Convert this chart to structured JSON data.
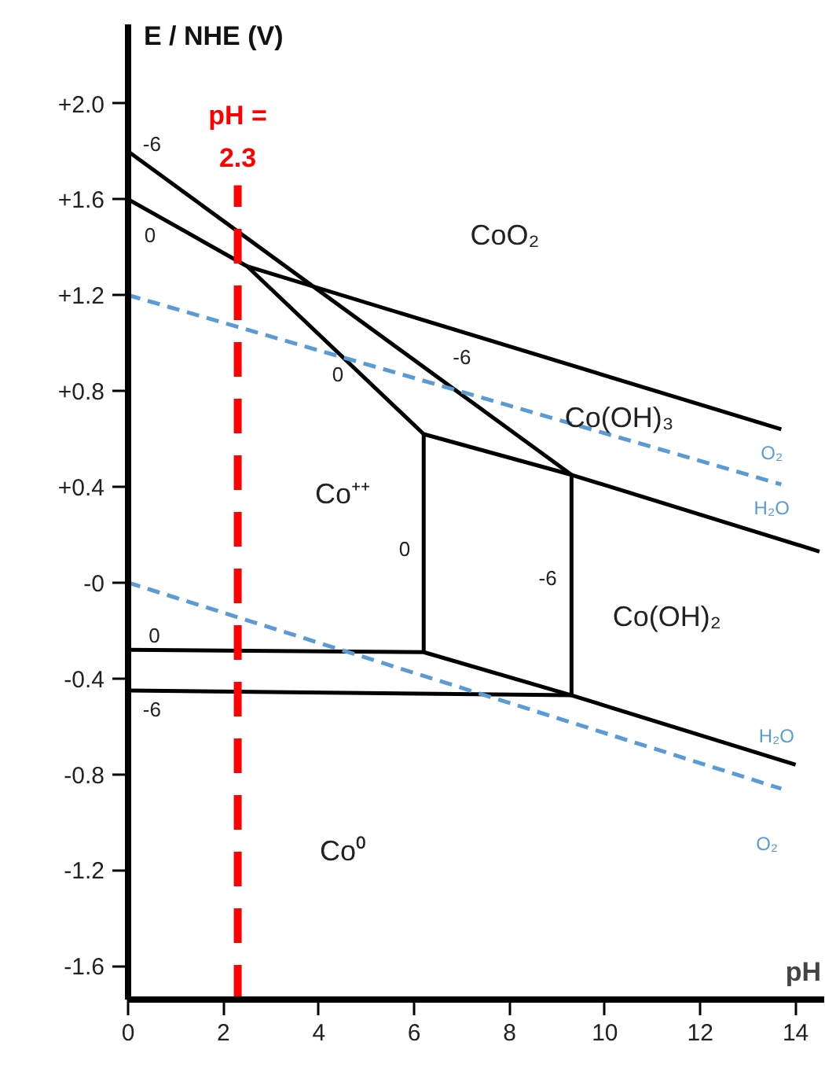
{
  "chart_data": {
    "type": "line",
    "xlabel": "pH",
    "ylabel": "E / NHE (V)",
    "series": [
      {
        "color": "#000000",
        "x": [
          0,
          9.3
        ],
        "values": [
          1.8,
          0.45
        ]
      },
      {
        "color": "#000000",
        "x": [
          0,
          2.5,
          6.2,
          9.3,
          14.5
        ],
        "values": [
          1.6,
          1.32,
          0.62,
          0.45,
          0.13
        ]
      },
      {
        "color": "#000000",
        "x": [
          2.5,
          13.7
        ],
        "values": [
          1.32,
          0.64
        ]
      },
      {
        "color": "#000000",
        "x": [
          6.2,
          6.2
        ],
        "values": [
          0.62,
          -0.29
        ]
      },
      {
        "color": "#000000",
        "x": [
          9.3,
          9.3
        ],
        "values": [
          0.45,
          -0.47
        ]
      },
      {
        "color": "#000000",
        "x": [
          0,
          6.2,
          9.3,
          14
        ],
        "values": [
          -0.28,
          -0.29,
          -0.47,
          -0.76
        ]
      },
      {
        "color": "#000000",
        "x": [
          0,
          9.3
        ],
        "values": [
          -0.45,
          -0.47
        ]
      },
      {
        "color": "#5b9bd5",
        "line_style": "dashed",
        "x": [
          0,
          13.7
        ],
        "values": [
          1.2,
          0.41
        ]
      },
      {
        "color": "#5b9bd5",
        "line_style": "dashed",
        "x": [
          0,
          13.7
        ],
        "values": [
          0,
          -0.86
        ]
      }
    ],
    "xlim": [
      0,
      14.6
    ],
    "ylim": [
      -1.74,
      2.33
    ],
    "xticks": [
      0,
      2,
      4,
      6,
      8,
      10,
      12,
      14
    ],
    "yticks": [
      {
        "value": 2.0,
        "label": "+2.0"
      },
      {
        "value": 1.6,
        "label": "+1.6"
      },
      {
        "value": 1.2,
        "label": "+1.2"
      },
      {
        "value": 0.8,
        "label": "+0.8"
      },
      {
        "value": 0.4,
        "label": "+0.4"
      },
      {
        "value": 0,
        "label": "-0"
      },
      {
        "value": -0.4,
        "label": "-0.4"
      },
      {
        "value": -0.8,
        "label": "-0.8"
      },
      {
        "value": -1.2,
        "label": "-1.2"
      },
      {
        "value": -1.6,
        "label": "-1.6"
      }
    ],
    "grid": false,
    "marker": "none",
    "line_style": "solid",
    "ref_lines": [
      {
        "axis": "x",
        "value": 2.3,
        "label": "pH = 2.3",
        "color": "#ff0000",
        "line_style": "dashed"
      }
    ],
    "annotations": [
      "CoO₂",
      "Co(OH)₃",
      "Co⁺⁺",
      "Co(OH)₂",
      "Co⁰",
      "-6",
      "0",
      "0",
      "-6",
      "0",
      "-6",
      "0",
      "-6",
      "O₂",
      "H₂O",
      "H₂O",
      "O₂"
    ]
  }
}
